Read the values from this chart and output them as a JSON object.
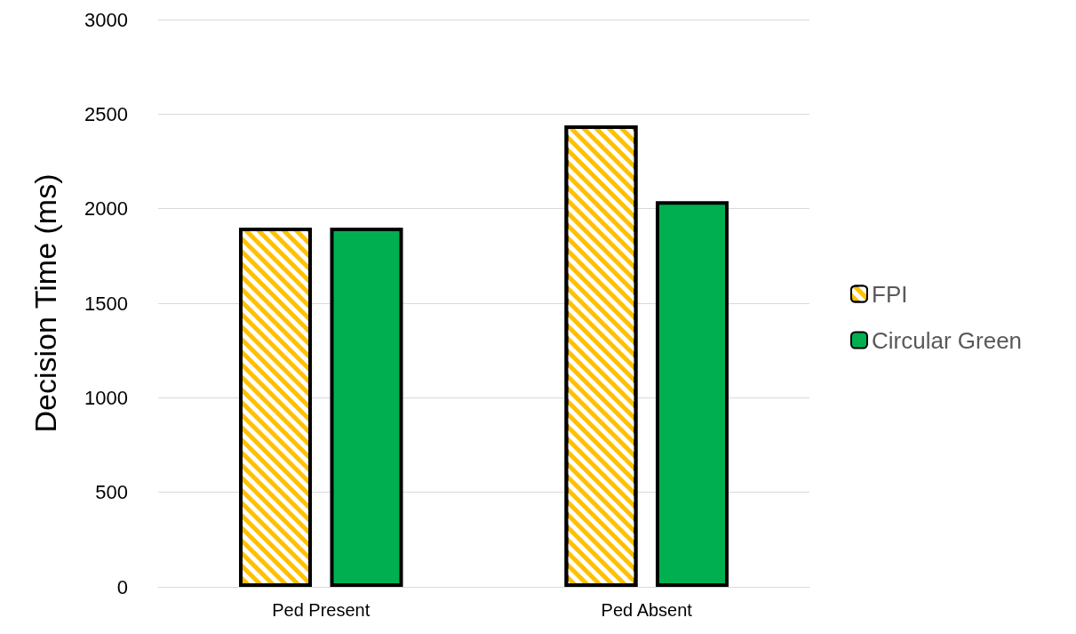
{
  "chart_data": {
    "type": "bar",
    "ylabel": "Decision Time (ms)",
    "categories": [
      "Ped Present",
      "Ped Absent"
    ],
    "series": [
      {
        "name": "FPI",
        "color": "#ffc000",
        "values": [
          1900,
          2440
        ]
      },
      {
        "name": "Circular Green",
        "color": "#00b050",
        "values": [
          1900,
          2040
        ]
      }
    ],
    "ylim": [
      0,
      3000
    ],
    "yticks": [
      0,
      500,
      1000,
      1500,
      2000,
      2500,
      3000
    ],
    "grid": "y",
    "legend": "right"
  }
}
